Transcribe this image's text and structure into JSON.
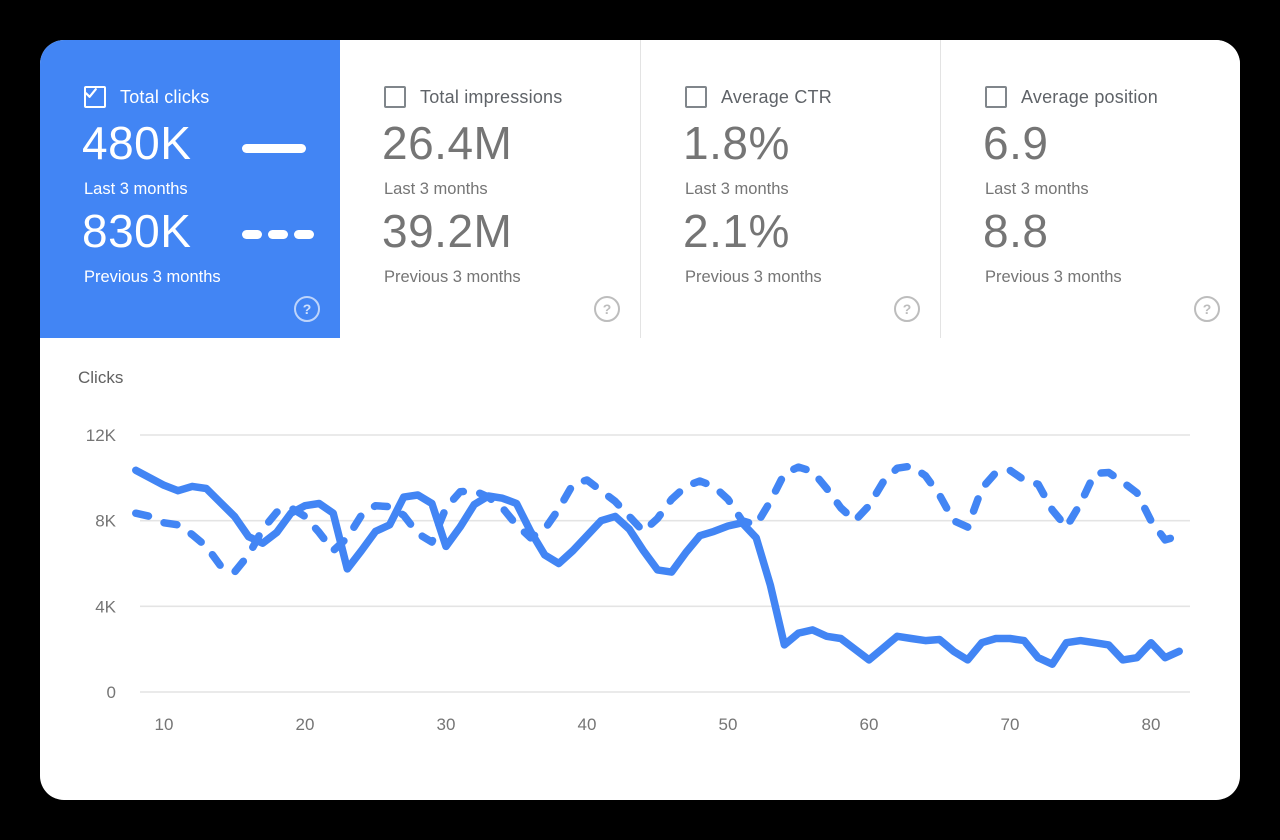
{
  "ui": {
    "help_glyph": "?"
  },
  "colors": {
    "accent": "#4285f4",
    "selected_card_bg": "#4285f4",
    "card_number_gray": "#757575",
    "card_label_gray": "#5f6368",
    "grid_line": "#e4e4e4",
    "tick_label": "#757575",
    "page_bg": "#ffffff"
  },
  "cards": [
    {
      "label": "Total clicks",
      "checked": true,
      "selected": true,
      "primary": "480K",
      "primary_caption": "Last 3 months",
      "secondary": "830K",
      "secondary_caption": "Previous 3 months"
    },
    {
      "label": "Total impressions",
      "checked": false,
      "selected": false,
      "primary": "26.4M",
      "primary_caption": "Last 3 months",
      "secondary": "39.2M",
      "secondary_caption": "Previous 3 months"
    },
    {
      "label": "Average CTR",
      "checked": false,
      "selected": false,
      "primary": "1.8%",
      "primary_caption": "Last 3 months",
      "secondary": "2.1%",
      "secondary_caption": "Previous 3 months"
    },
    {
      "label": "Average position",
      "checked": false,
      "selected": false,
      "primary": "6.9",
      "primary_caption": "Last 3 months",
      "secondary": "8.8",
      "secondary_caption": "Previous 3 months"
    }
  ],
  "chart_data": {
    "type": "line",
    "title": "Clicks",
    "xlabel": "",
    "ylabel": "Clicks",
    "x_start": 8,
    "x_step": 1,
    "x_ticks": [
      10,
      20,
      30,
      40,
      50,
      60,
      70,
      80
    ],
    "y_ticks": [
      {
        "value": 0,
        "label": "0"
      },
      {
        "value": 4000,
        "label": "4K"
      },
      {
        "value": 8000,
        "label": "8K"
      },
      {
        "value": 12000,
        "label": "12K"
      }
    ],
    "ylim": [
      0,
      12000
    ],
    "grid": true,
    "series": [
      {
        "name": "Last 3 months",
        "style": "solid",
        "color": "#4285f4",
        "values": [
          10350,
          10000,
          9650,
          9400,
          9600,
          9500,
          8850,
          8200,
          7250,
          6950,
          7450,
          8350,
          8700,
          8800,
          8350,
          5750,
          6600,
          7500,
          7800,
          9100,
          9200,
          8800,
          6800,
          7700,
          8750,
          9150,
          9050,
          8800,
          7500,
          6400,
          6000,
          6600,
          7300,
          8000,
          8200,
          7600,
          6600,
          5700,
          5600,
          6500,
          7300,
          7500,
          7750,
          7900,
          7200,
          5000,
          2200,
          2750,
          2900,
          2600,
          2500,
          2000,
          1500,
          2050,
          2600,
          2500,
          2400,
          2450,
          1900,
          1500,
          2300,
          2500,
          2500,
          2400,
          1600,
          1300,
          2300,
          2400,
          2300,
          2200,
          1500,
          1600,
          2300,
          1600,
          1900
        ]
      },
      {
        "name": "Previous 3 months",
        "style": "dashed",
        "color": "#4285f4",
        "values": [
          8350,
          8200,
          7900,
          7800,
          7350,
          6800,
          5900,
          5600,
          6400,
          7600,
          8400,
          8600,
          8200,
          7450,
          6600,
          7200,
          8250,
          8700,
          8650,
          8250,
          7400,
          7000,
          8600,
          9350,
          9400,
          9100,
          8600,
          7800,
          7200,
          7600,
          8550,
          9700,
          9900,
          9400,
          8900,
          8200,
          7500,
          8100,
          9000,
          9600,
          9850,
          9600,
          9000,
          8000,
          7800,
          8900,
          10200,
          10500,
          10300,
          9500,
          8600,
          8000,
          8700,
          9800,
          10450,
          10550,
          10100,
          9200,
          8000,
          7700,
          9500,
          10250,
          10350,
          9900,
          9700,
          8500,
          7700,
          8800,
          10200,
          10250,
          9800,
          9300,
          8000,
          7100,
          7300
        ]
      }
    ]
  }
}
